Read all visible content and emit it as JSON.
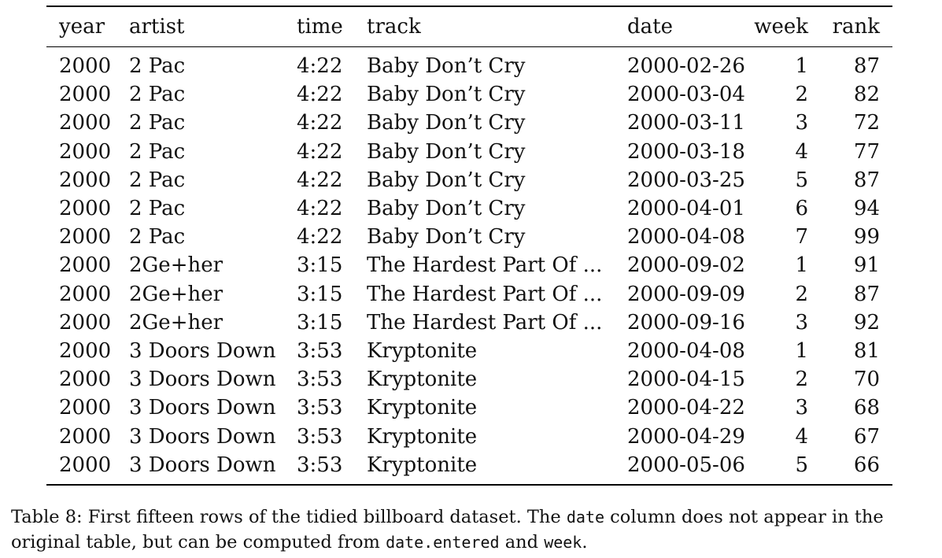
{
  "table": {
    "columns": [
      "year",
      "artist",
      "time",
      "track",
      "date",
      "week",
      "rank"
    ],
    "rows": [
      [
        "2000",
        "2 Pac",
        "4:22",
        "Baby Don’t Cry",
        "2000-02-26",
        "1",
        "87"
      ],
      [
        "2000",
        "2 Pac",
        "4:22",
        "Baby Don’t Cry",
        "2000-03-04",
        "2",
        "82"
      ],
      [
        "2000",
        "2 Pac",
        "4:22",
        "Baby Don’t Cry",
        "2000-03-11",
        "3",
        "72"
      ],
      [
        "2000",
        "2 Pac",
        "4:22",
        "Baby Don’t Cry",
        "2000-03-18",
        "4",
        "77"
      ],
      [
        "2000",
        "2 Pac",
        "4:22",
        "Baby Don’t Cry",
        "2000-03-25",
        "5",
        "87"
      ],
      [
        "2000",
        "2 Pac",
        "4:22",
        "Baby Don’t Cry",
        "2000-04-01",
        "6",
        "94"
      ],
      [
        "2000",
        "2 Pac",
        "4:22",
        "Baby Don’t Cry",
        "2000-04-08",
        "7",
        "99"
      ],
      [
        "2000",
        "2Ge+her",
        "3:15",
        "The Hardest Part Of ...",
        "2000-09-02",
        "1",
        "91"
      ],
      [
        "2000",
        "2Ge+her",
        "3:15",
        "The Hardest Part Of ...",
        "2000-09-09",
        "2",
        "87"
      ],
      [
        "2000",
        "2Ge+her",
        "3:15",
        "The Hardest Part Of ...",
        "2000-09-16",
        "3",
        "92"
      ],
      [
        "2000",
        "3 Doors Down",
        "3:53",
        "Kryptonite",
        "2000-04-08",
        "1",
        "81"
      ],
      [
        "2000",
        "3 Doors Down",
        "3:53",
        "Kryptonite",
        "2000-04-15",
        "2",
        "70"
      ],
      [
        "2000",
        "3 Doors Down",
        "3:53",
        "Kryptonite",
        "2000-04-22",
        "3",
        "68"
      ],
      [
        "2000",
        "3 Doors Down",
        "3:53",
        "Kryptonite",
        "2000-04-29",
        "4",
        "67"
      ],
      [
        "2000",
        "3 Doors Down",
        "3:53",
        "Kryptonite",
        "2000-05-06",
        "5",
        "66"
      ]
    ]
  },
  "caption": {
    "label": "Table 8:",
    "text_1": " First fifteen rows of the tidied billboard dataset. The ",
    "code_date": "date",
    "text_2": " column does not appear in the original table, but can be computed from ",
    "code_date_entered": "date.entered",
    "text_3": " and ",
    "code_week": "week",
    "text_4": "."
  }
}
